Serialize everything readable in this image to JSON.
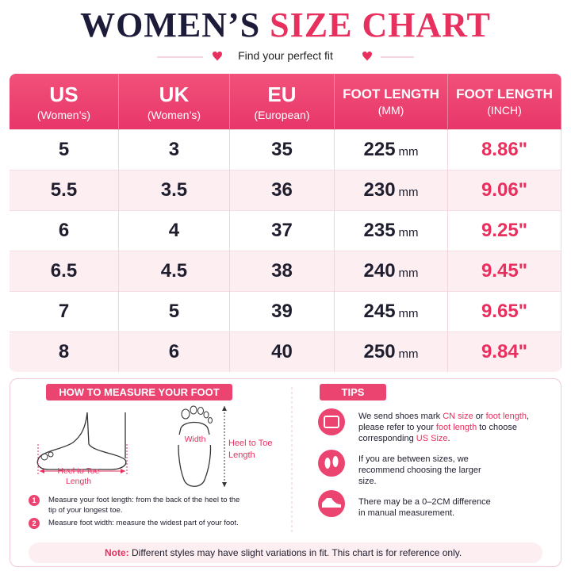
{
  "header": {
    "title_dark": "WOMEN’S",
    "title_pink": "SIZE CHART",
    "subtitle": "Find your perfect fit"
  },
  "table": {
    "columns": [
      {
        "name": "US",
        "sub": "(Women’s)"
      },
      {
        "name": "UK",
        "sub": "(Women’s)"
      },
      {
        "name": "EU",
        "sub": "(European)"
      },
      {
        "name": "FOOT LENGTH",
        "sub": "(MM)"
      },
      {
        "name": "FOOT LENGTH",
        "sub": "(INCH)"
      }
    ],
    "unit": "mm",
    "rows": [
      [
        "5",
        "3",
        "35",
        "225",
        "8.86\""
      ],
      [
        "5.5",
        "3.5",
        "36",
        "230",
        "9.06\""
      ],
      [
        "6",
        "4",
        "37",
        "235",
        "9.25\""
      ],
      [
        "6.5",
        "4.5",
        "38",
        "240",
        "9.45\""
      ],
      [
        "7",
        "5",
        "39",
        "245",
        "9.65\""
      ],
      [
        "8",
        "6",
        "40",
        "250",
        "9.84\""
      ]
    ]
  },
  "measure": {
    "title": "HOW TO MEASURE YOUR FOOT",
    "side_label": "Heel to Toe Length",
    "width_label": "Width",
    "top_label": "Heel to Toe Length",
    "steps": [
      {
        "number": "1",
        "text": "Measure your foot length: from the back of the heel to the tip of your longest toe."
      },
      {
        "number": "2",
        "text": "Measure foot width: measure the widest part of your foot."
      }
    ]
  },
  "tips": {
    "title": "TIPS",
    "items": [
      [
        "We send shoes mark ",
        "CN size",
        " or ",
        "foot length",
        ", please refer to your ",
        "foot length",
        " to choose corresponding ",
        "US Size",
        "."
      ],
      [
        "If you are between sizes, we recommend choosing the larger size."
      ],
      [
        "There may be a 0–2CM difference in manual measurement."
      ]
    ]
  },
  "note": {
    "label": "Note:",
    "text": "Different styles may have slight variations in fit. This chart is for reference only."
  }
}
